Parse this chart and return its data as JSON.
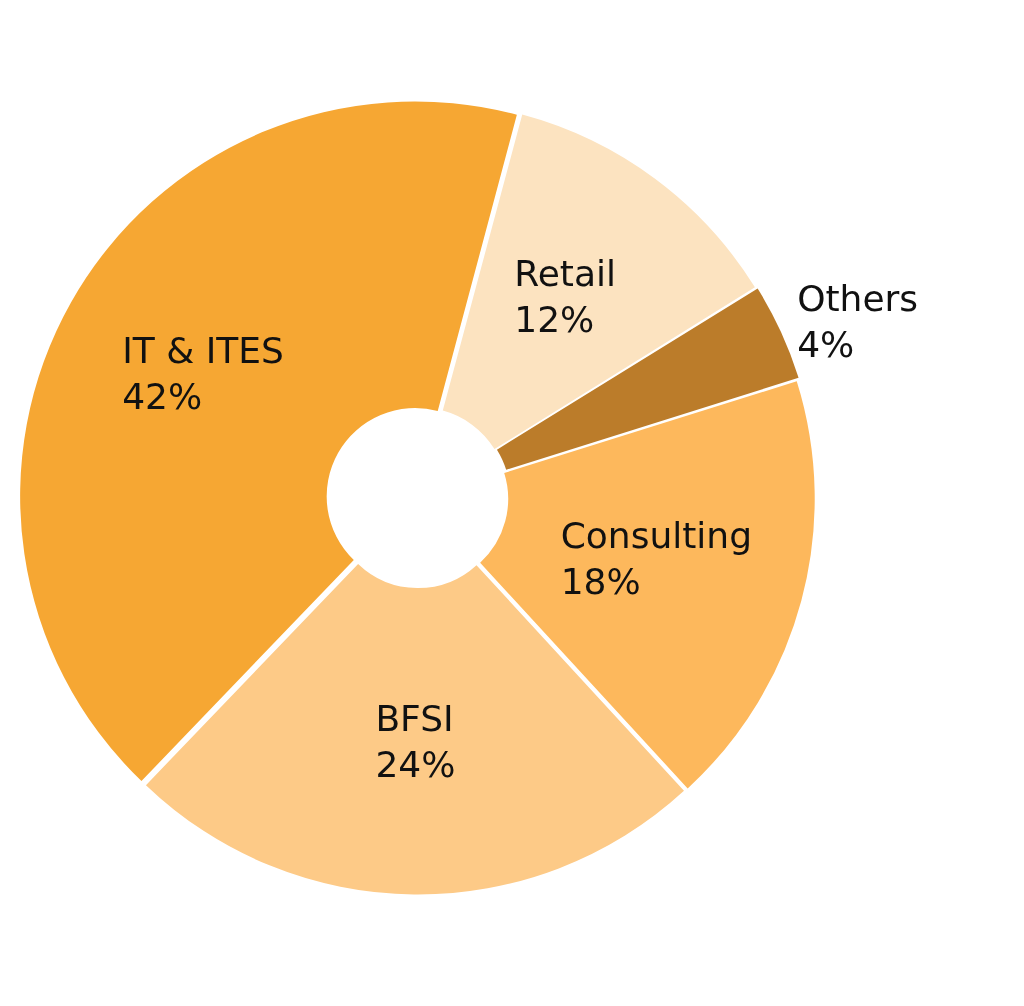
{
  "chart_data": {
    "type": "donut",
    "categories": [
      "Retail",
      "Others",
      "Consulting",
      "BFSI",
      "IT & ITES"
    ],
    "values": [
      12,
      4,
      18,
      24,
      42
    ],
    "value_labels": [
      "12%",
      "4%",
      "18%",
      "24%",
      "42%"
    ],
    "colors": [
      "#fce3c0",
      "#bb7c2a",
      "#fdb85c",
      "#fdca87",
      "#f6a733"
    ],
    "legend": false
  }
}
